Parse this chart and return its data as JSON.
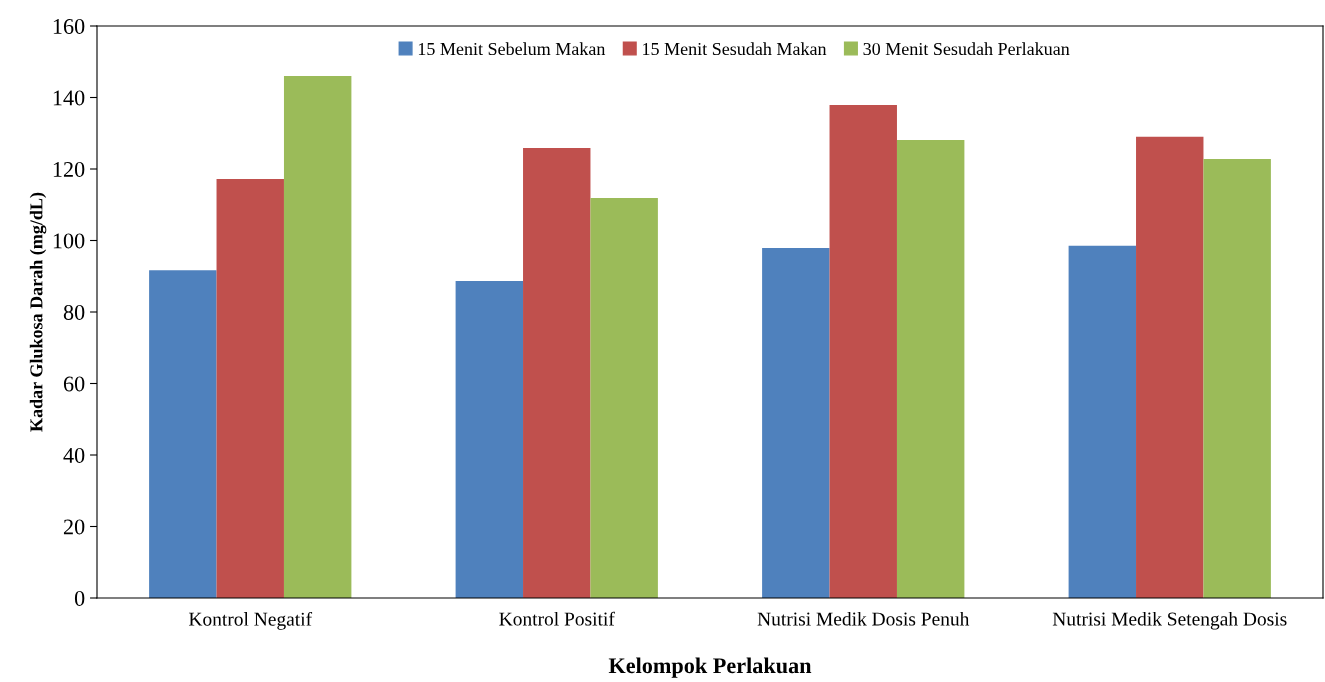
{
  "chart_data": {
    "type": "bar",
    "xlabel": "Kelompok Perlakuan",
    "ylabel": "Kadar Glukosa Darah (mg/dL)",
    "categories": [
      "Kontrol Negatif",
      "Kontrol Positif",
      "Nutrisi Medik Dosis Penuh",
      "Nutrisi Medik Setengah Dosis"
    ],
    "series": [
      {
        "name": "15 Menit Sebelum Makan",
        "color": "#4f81bd",
        "values": [
          91.7,
          88.7,
          97.9,
          98.5
        ]
      },
      {
        "name": "15 Menit Sesudah Makan",
        "color": "#c0504d",
        "values": [
          117.2,
          125.9,
          137.9,
          129.0
        ]
      },
      {
        "name": "30 Menit Sesudah Perlakuan",
        "color": "#9bbb59",
        "values": [
          146.0,
          111.9,
          128.1,
          122.8
        ]
      }
    ],
    "ylim": [
      0,
      160
    ],
    "yticks": [
      0,
      20,
      40,
      60,
      80,
      100,
      120,
      140,
      160
    ],
    "grid": false,
    "legend": "top"
  }
}
